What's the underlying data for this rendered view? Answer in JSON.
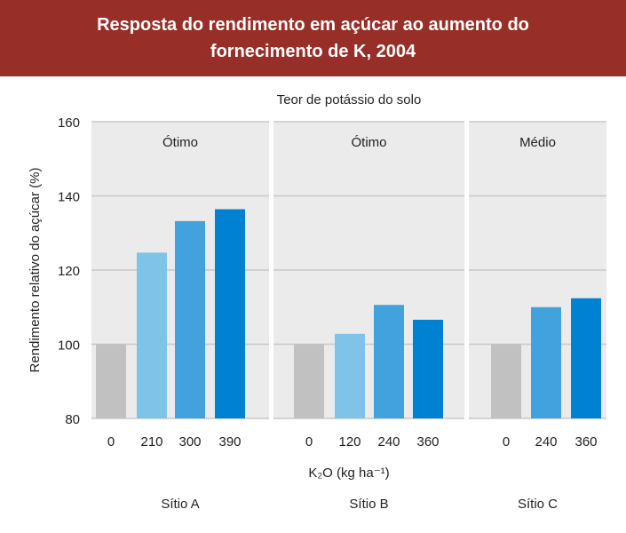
{
  "chart_data": {
    "type": "bar",
    "title_line1": "Resposta do rendimento em açúcar ao aumento do",
    "title_line2": "fornecimento de K, 2004",
    "subtitle": "Teor de potássio do solo",
    "ylabel": "Rendimento relativo do açúcar (%)",
    "xlabel": "K₂O (kg ha⁻¹)",
    "ylim": [
      80,
      160
    ],
    "yticks": [
      "80",
      "100",
      "120",
      "140",
      "160"
    ],
    "grid": true,
    "colors": {
      "0": "#c1c1c1",
      "low": "#80c3e8",
      "mid": "#42a2de",
      "high": "#0081d1",
      "panel": "#ebebeb",
      "header": "#982e28"
    },
    "panels": [
      {
        "site": "Sítio A",
        "potassium": "Ótimo",
        "categories": [
          "0",
          "210",
          "300",
          "390"
        ],
        "values": [
          100,
          124.7,
          133.2,
          136.4
        ],
        "color_keys": [
          "0",
          "low",
          "mid",
          "high"
        ]
      },
      {
        "site": "Sítio B",
        "potassium": "Ótimo",
        "categories": [
          "0",
          "120",
          "240",
          "360"
        ],
        "values": [
          100,
          102.8,
          110.6,
          106.6
        ],
        "color_keys": [
          "0",
          "low",
          "mid",
          "high"
        ]
      },
      {
        "site": "Sítio C",
        "potassium": "Médio",
        "categories": [
          "0",
          "240",
          "360"
        ],
        "values": [
          100,
          110,
          112.4
        ],
        "color_keys": [
          "0",
          "mid",
          "high"
        ]
      }
    ]
  }
}
